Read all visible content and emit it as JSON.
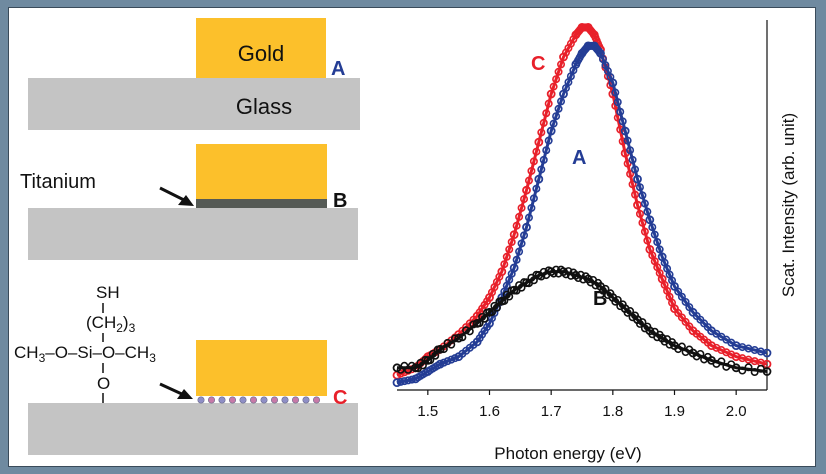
{
  "schematic": {
    "gold_label": "Gold",
    "glass_label": "Glass",
    "titanium_label": "Titanium",
    "panel_labels": [
      "A",
      "B",
      "C"
    ],
    "molecule": {
      "sh": "SH",
      "chain_open": "(CH",
      "chain_sub": "2",
      "chain_close": ")",
      "chain_n": "3",
      "left_group": "CH",
      "left_sub": "3",
      "left_rest": "–O–Si–O–CH",
      "right_sub": "3",
      "bottom_o": "O"
    },
    "colors": {
      "gold": "#fcc02b",
      "glass": "#c4c4c4",
      "titanium": "#555a55",
      "blue_label": "#243d95",
      "red_label": "#e8202a"
    }
  },
  "chart_data": {
    "type": "scatter",
    "title": "",
    "xlabel": "Photon energy (eV)",
    "ylabel": "Scat. Intensity (arb. unit)",
    "xlim": [
      1.45,
      2.05
    ],
    "ylim": [
      0,
      1.0
    ],
    "xticks": [
      1.5,
      1.6,
      1.7,
      1.8,
      1.9,
      2.0
    ],
    "xtick_labels": [
      "1.5",
      "1.6",
      "1.7",
      "1.8",
      "1.9",
      "2.0"
    ],
    "grid": false,
    "legend": "none",
    "series": [
      {
        "name": "C",
        "color": "#e8202a",
        "x": [
          1.45,
          1.48,
          1.5,
          1.52,
          1.55,
          1.58,
          1.6,
          1.62,
          1.64,
          1.66,
          1.68,
          1.7,
          1.72,
          1.74,
          1.75,
          1.76,
          1.77,
          1.78,
          1.8,
          1.82,
          1.84,
          1.86,
          1.88,
          1.9,
          1.93,
          1.96,
          2.0,
          2.05
        ],
        "y": [
          0.04,
          0.06,
          0.09,
          0.11,
          0.15,
          0.2,
          0.25,
          0.32,
          0.42,
          0.54,
          0.67,
          0.8,
          0.9,
          0.96,
          0.98,
          0.98,
          0.96,
          0.92,
          0.8,
          0.64,
          0.5,
          0.38,
          0.3,
          0.22,
          0.16,
          0.12,
          0.09,
          0.07
        ]
      },
      {
        "name": "A",
        "color": "#243d95",
        "x": [
          1.45,
          1.48,
          1.5,
          1.52,
          1.55,
          1.58,
          1.6,
          1.62,
          1.64,
          1.66,
          1.68,
          1.7,
          1.72,
          1.74,
          1.75,
          1.76,
          1.77,
          1.78,
          1.8,
          1.82,
          1.84,
          1.86,
          1.88,
          1.9,
          1.93,
          1.96,
          2.0,
          2.05
        ],
        "y": [
          0.02,
          0.03,
          0.05,
          0.07,
          0.09,
          0.13,
          0.18,
          0.25,
          0.33,
          0.44,
          0.57,
          0.7,
          0.8,
          0.88,
          0.91,
          0.93,
          0.93,
          0.91,
          0.83,
          0.7,
          0.57,
          0.46,
          0.36,
          0.28,
          0.21,
          0.16,
          0.12,
          0.1
        ]
      },
      {
        "name": "B",
        "color": "#111111",
        "x": [
          1.45,
          1.48,
          1.5,
          1.52,
          1.55,
          1.58,
          1.6,
          1.62,
          1.64,
          1.66,
          1.68,
          1.7,
          1.72,
          1.74,
          1.76,
          1.78,
          1.8,
          1.82,
          1.84,
          1.86,
          1.88,
          1.9,
          1.93,
          1.96,
          2.0,
          2.05
        ],
        "y": [
          0.06,
          0.06,
          0.08,
          0.11,
          0.14,
          0.18,
          0.21,
          0.24,
          0.27,
          0.29,
          0.31,
          0.32,
          0.32,
          0.31,
          0.3,
          0.28,
          0.25,
          0.22,
          0.19,
          0.16,
          0.14,
          0.12,
          0.1,
          0.08,
          0.06,
          0.05
        ]
      }
    ],
    "annotations": [
      "C",
      "A",
      "B"
    ]
  }
}
